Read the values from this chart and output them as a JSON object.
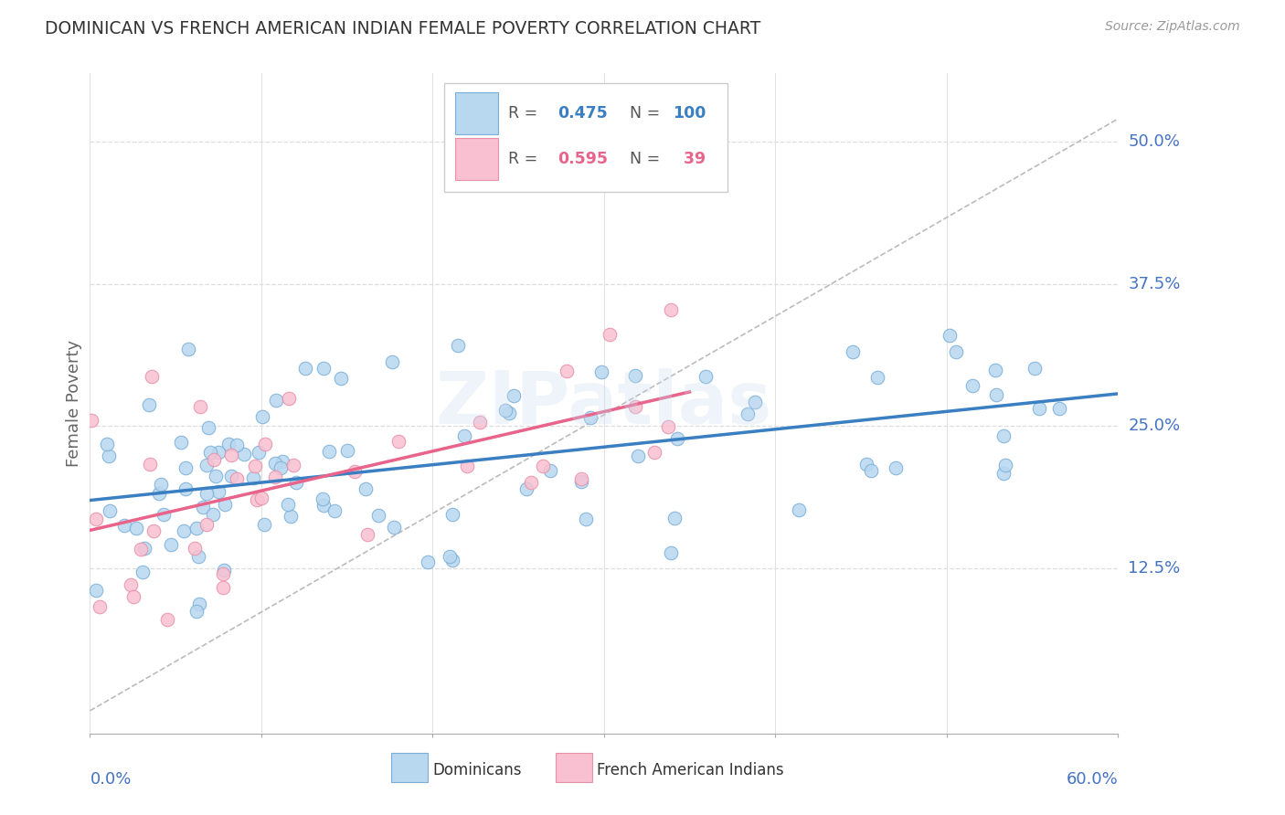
{
  "title": "DOMINICAN VS FRENCH AMERICAN INDIAN FEMALE POVERTY CORRELATION CHART",
  "source": "Source: ZipAtlas.com",
  "ylabel": "Female Poverty",
  "xlim": [
    0.0,
    0.6
  ],
  "ylim": [
    -0.02,
    0.56
  ],
  "ytick_values": [
    0.125,
    0.25,
    0.375,
    0.5
  ],
  "ytick_labels": [
    "12.5%",
    "25.0%",
    "37.5%",
    "50.0%"
  ],
  "xtick_vals": [
    0.0,
    0.1,
    0.2,
    0.3,
    0.4,
    0.5,
    0.6
  ],
  "blue_line_color": "#3A7FC1",
  "pink_line_color": "#E8648A",
  "ref_line_color": "#BBBBBB",
  "scatter_blue_face": "#B8D8F0",
  "scatter_blue_edge": "#7AAED8",
  "scatter_pink_face": "#F8C0D0",
  "scatter_pink_edge": "#E890A8",
  "background_color": "#FFFFFF",
  "grid_color": "#DDDDDD",
  "title_color": "#333333",
  "axis_label_color": "#4472C4",
  "legend_r1_color": "#3A7FC1",
  "legend_r2_color": "#E8648A",
  "legend_n1_color": "#3A7FC1",
  "legend_n2_color": "#E8648A",
  "watermark_color": "#C8DCF0",
  "blue_R": 0.475,
  "blue_N": 100,
  "pink_R": 0.595,
  "pink_N": 39,
  "blue_intercept": 0.185,
  "blue_slope": 0.155,
  "pink_intercept": 0.155,
  "pink_slope": 0.47
}
